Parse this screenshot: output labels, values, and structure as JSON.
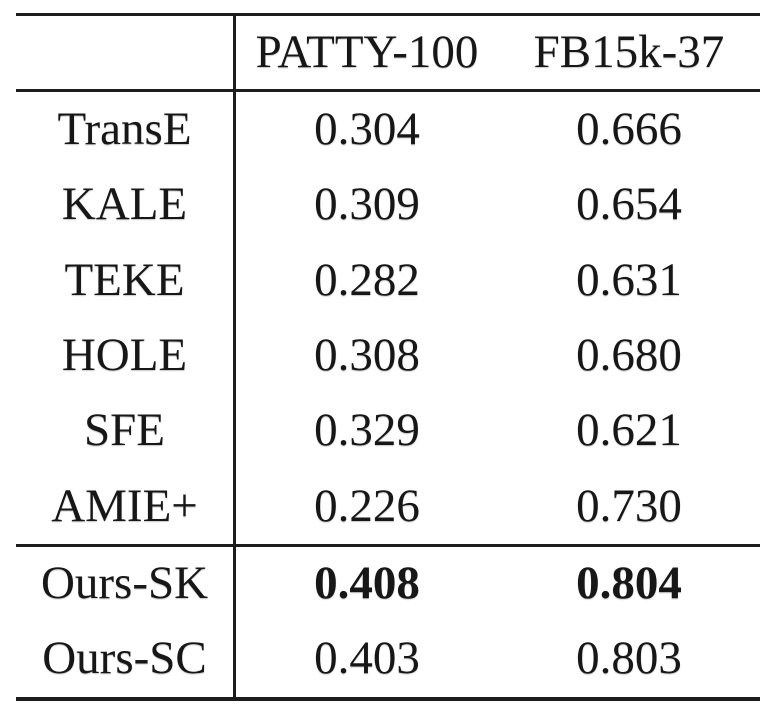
{
  "page": {
    "background_color": "#ffffff",
    "text_color": "#171717",
    "rule_color": "#1c1c1c"
  },
  "table": {
    "header": {
      "col0": "",
      "col1": "PATTY-100",
      "col2": "FB15k-37"
    },
    "rows": [
      {
        "method": "TransE",
        "patty100": "0.304",
        "fb15k37": "0.666"
      },
      {
        "method": "KALE",
        "patty100": "0.309",
        "fb15k37": "0.654"
      },
      {
        "method": "TEKE",
        "patty100": "0.282",
        "fb15k37": "0.631"
      },
      {
        "method": "HOLE",
        "patty100": "0.308",
        "fb15k37": "0.680"
      },
      {
        "method": "SFE",
        "patty100": "0.329",
        "fb15k37": "0.621"
      },
      {
        "method": "AMIE+",
        "patty100": "0.226",
        "fb15k37": "0.730"
      },
      {
        "method": "Ours-SK",
        "patty100": "0.408",
        "fb15k37": "0.804",
        "values_bold": true
      },
      {
        "method": "Ours-SC",
        "patty100": "0.403",
        "fb15k37": "0.803",
        "values_bold": false
      }
    ]
  }
}
